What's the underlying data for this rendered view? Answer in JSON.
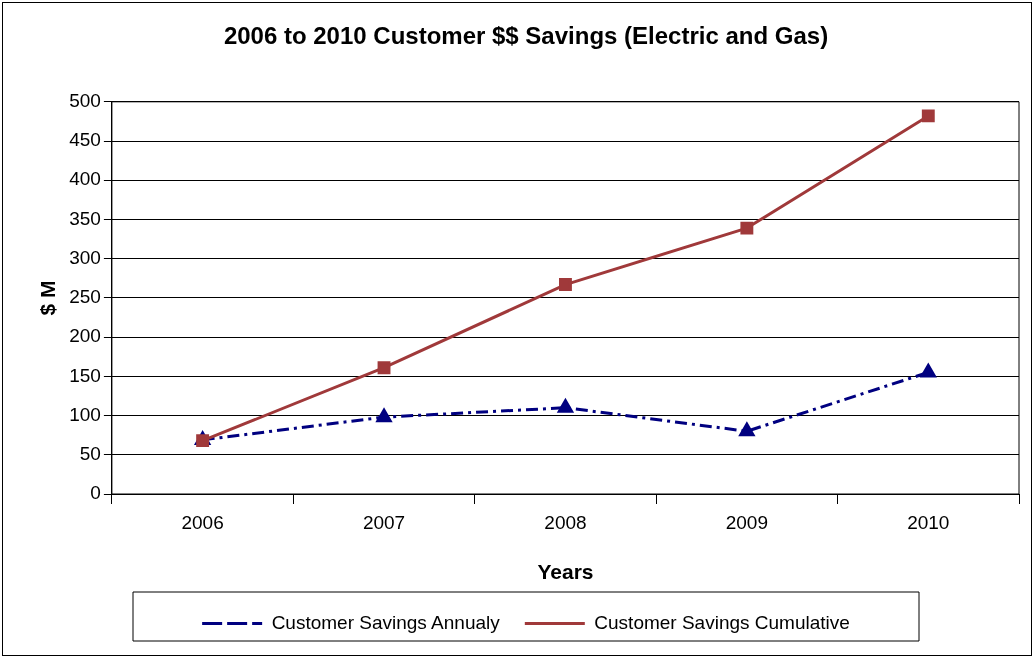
{
  "chart_data": {
    "type": "line",
    "title": "2006 to 2010 Customer $$ Savings (Electric and Gas)",
    "xlabel": "Years",
    "ylabel": "$ M",
    "categories": [
      "2006",
      "2007",
      "2008",
      "2009",
      "2010"
    ],
    "series": [
      {
        "name": "Customer Savings Annualy",
        "color": "#000080",
        "marker": "triangle",
        "line_style": "dashed",
        "values": [
          69,
          98,
          110,
          80,
          155
        ]
      },
      {
        "name": "Customer Savings Cumulative",
        "color": "#a0393a",
        "marker": "square",
        "line_style": "solid",
        "values": [
          68,
          161,
          267,
          339,
          482
        ]
      }
    ],
    "ylim": [
      0,
      500
    ],
    "yticks": [
      0,
      50,
      100,
      150,
      200,
      250,
      300,
      350,
      400,
      450,
      500
    ],
    "grid": "y",
    "legend": "bottom"
  }
}
